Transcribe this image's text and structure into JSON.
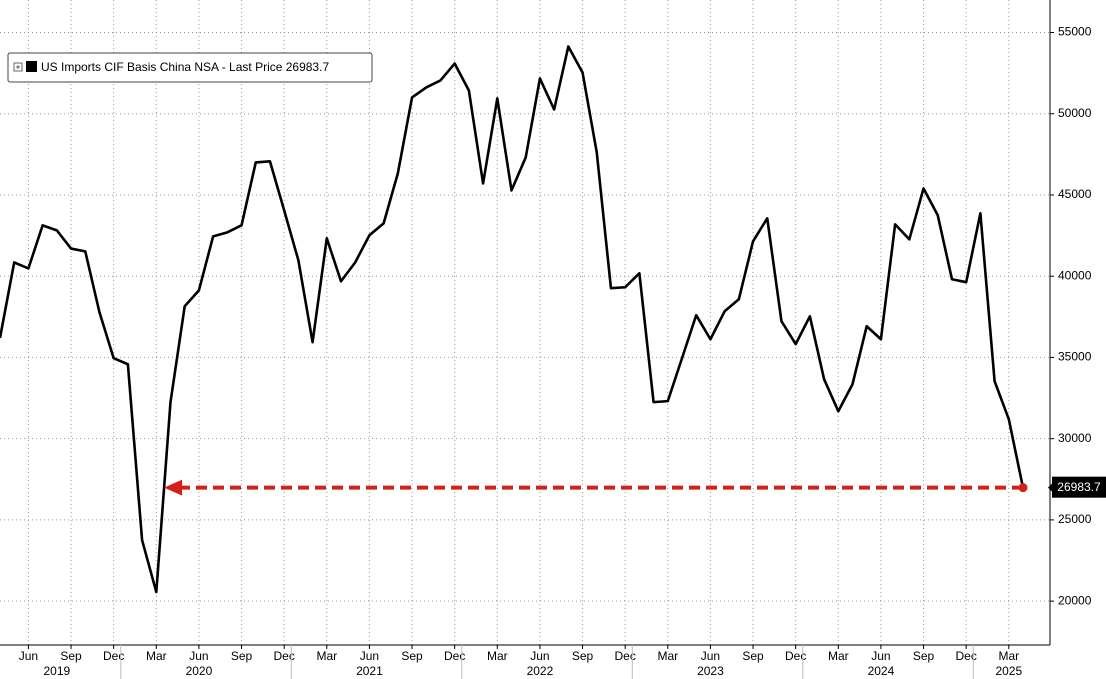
{
  "chart_data": {
    "type": "line",
    "x": [
      "2019-04",
      "2019-05",
      "2019-06",
      "2019-07",
      "2019-08",
      "2019-09",
      "2019-10",
      "2019-11",
      "2019-12",
      "2020-01",
      "2020-02",
      "2020-03",
      "2020-04",
      "2020-05",
      "2020-06",
      "2020-07",
      "2020-08",
      "2020-09",
      "2020-10",
      "2020-11",
      "2020-12",
      "2021-01",
      "2021-02",
      "2021-03",
      "2021-04",
      "2021-05",
      "2021-06",
      "2021-07",
      "2021-08",
      "2021-09",
      "2021-10",
      "2021-11",
      "2021-12",
      "2022-01",
      "2022-02",
      "2022-03",
      "2022-04",
      "2022-05",
      "2022-06",
      "2022-07",
      "2022-08",
      "2022-09",
      "2022-10",
      "2022-11",
      "2022-12",
      "2023-01",
      "2023-02",
      "2023-03",
      "2023-04",
      "2023-05",
      "2023-06",
      "2023-07",
      "2023-08",
      "2023-09",
      "2023-10",
      "2023-11",
      "2023-12",
      "2024-01",
      "2024-02",
      "2024-03",
      "2024-04",
      "2024-05",
      "2024-06",
      "2024-07",
      "2024-08",
      "2024-09",
      "2024-10",
      "2024-11",
      "2024-12",
      "2025-01",
      "2025-02",
      "2025-03",
      "2025-04"
    ],
    "series": [
      {
        "name": "US Imports CIF Basis China NSA - Last Price 26983.7",
        "color": "#000000",
        "values": [
          36200,
          40850,
          40480,
          43130,
          42820,
          41700,
          41530,
          37780,
          34950,
          34580,
          23760,
          20560,
          32250,
          38150,
          39130,
          42450,
          42700,
          43130,
          47000,
          47070,
          44050,
          40980,
          35940,
          42330,
          39690,
          40850,
          42520,
          43250,
          46330,
          51000,
          51620,
          52050,
          53090,
          51430,
          45710,
          50940,
          45280,
          47310,
          52170,
          50260,
          54140,
          52540,
          47620,
          39260,
          39320,
          40180,
          32250,
          32310,
          34950,
          37600,
          36120,
          37840,
          38580,
          42150,
          43560,
          37230,
          35820,
          37530,
          33660,
          31690,
          33350,
          36920,
          36120,
          43190,
          42270,
          45400,
          43750,
          39810,
          39630,
          43870,
          33540,
          31200,
          26983.7
        ]
      }
    ],
    "xticks": [
      {
        "value": "2019-06",
        "label": "Jun"
      },
      {
        "value": "2019-09",
        "label": "Sep"
      },
      {
        "value": "2019-12",
        "label": "Dec"
      },
      {
        "value": "2020-03",
        "label": "Mar"
      },
      {
        "value": "2020-06",
        "label": "Jun"
      },
      {
        "value": "2020-09",
        "label": "Sep"
      },
      {
        "value": "2020-12",
        "label": "Dec"
      },
      {
        "value": "2021-03",
        "label": "Mar"
      },
      {
        "value": "2021-06",
        "label": "Jun"
      },
      {
        "value": "2021-09",
        "label": "Sep"
      },
      {
        "value": "2021-12",
        "label": "Dec"
      },
      {
        "value": "2022-03",
        "label": "Mar"
      },
      {
        "value": "2022-06",
        "label": "Jun"
      },
      {
        "value": "2022-09",
        "label": "Sep"
      },
      {
        "value": "2022-12",
        "label": "Dec"
      },
      {
        "value": "2023-03",
        "label": "Mar"
      },
      {
        "value": "2023-06",
        "label": "Jun"
      },
      {
        "value": "2023-09",
        "label": "Sep"
      },
      {
        "value": "2023-12",
        "label": "Dec"
      },
      {
        "value": "2024-03",
        "label": "Mar"
      },
      {
        "value": "2024-06",
        "label": "Jun"
      },
      {
        "value": "2024-09",
        "label": "Sep"
      },
      {
        "value": "2024-12",
        "label": "Dec"
      },
      {
        "value": "2025-03",
        "label": "Mar"
      }
    ],
    "year_labels": [
      {
        "value": "2019-08",
        "label": "2019"
      },
      {
        "value": "2020-06",
        "label": "2020"
      },
      {
        "value": "2021-06",
        "label": "2021"
      },
      {
        "value": "2022-06",
        "label": "2022"
      },
      {
        "value": "2023-06",
        "label": "2023"
      },
      {
        "value": "2024-06",
        "label": "2024"
      },
      {
        "value": "2025-03",
        "label": "2025"
      }
    ],
    "ylim": [
      17300,
      57000
    ],
    "yticks": [
      20000,
      25000,
      30000,
      35000,
      40000,
      45000,
      50000,
      55000
    ],
    "grid": true,
    "legend": "top-left",
    "annotation_color": "#d0221b"
  }
}
